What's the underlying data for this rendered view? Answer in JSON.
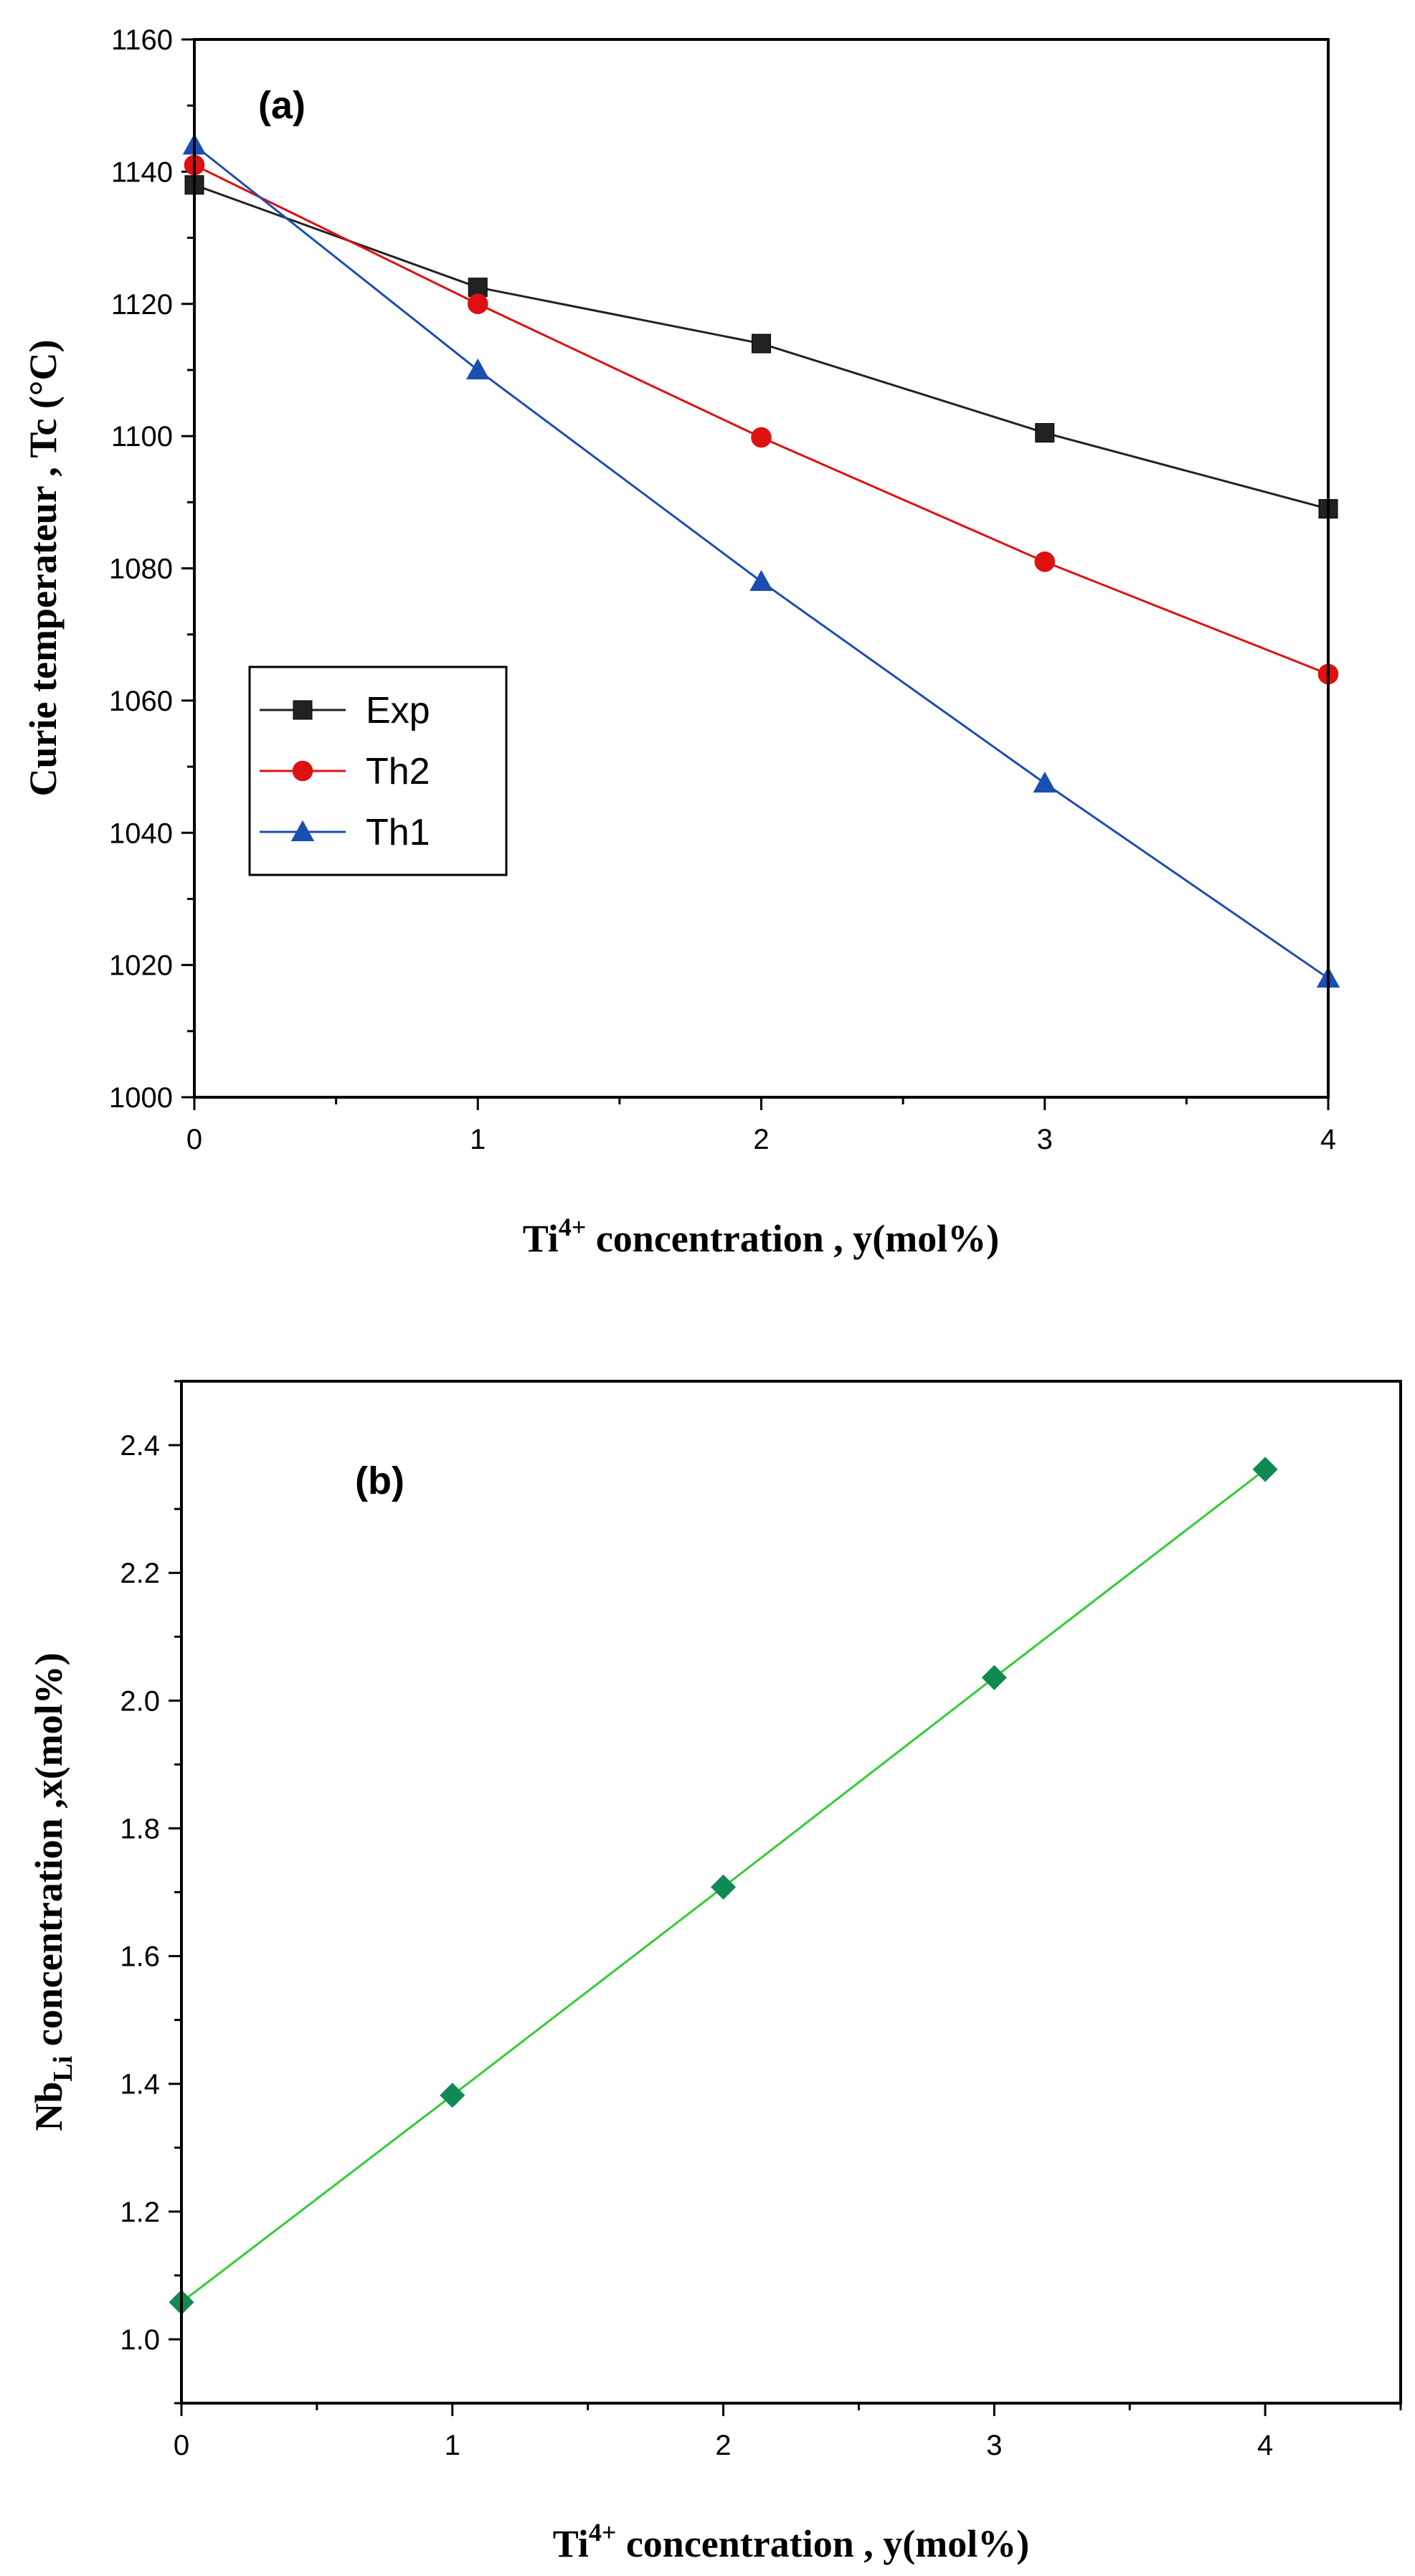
{
  "chart_data": [
    {
      "type": "line",
      "panel_label": "(a)",
      "x": [
        0,
        1,
        2,
        3,
        4
      ],
      "xlim": [
        0,
        4
      ],
      "ylim": [
        1000,
        1160
      ],
      "xticks": [
        "0",
        "1",
        "2",
        "3",
        "4"
      ],
      "yticks": [
        "1000",
        "1020",
        "1040",
        "1060",
        "1080",
        "1100",
        "1120",
        "1140",
        "1160"
      ],
      "xlabel": {
        "prefix": "Ti",
        "sup": "4+",
        "suffix": " concentration , y(mol%)"
      },
      "ylabel": "Curie temperateur , Tc (°C)",
      "legend_position": "left-middle",
      "series": [
        {
          "name": "Exp",
          "marker": "square",
          "color": "#222222",
          "values": [
            1138,
            1122.5,
            1114,
            1100.5,
            1089
          ]
        },
        {
          "name": "Th2",
          "marker": "circle",
          "color": "#dd1111",
          "values": [
            1141,
            1120,
            1099.8,
            1081,
            1064
          ]
        },
        {
          "name": "Th1",
          "marker": "triangle",
          "color": "#1a4fb0",
          "values": [
            1144,
            1110,
            1078,
            1047.5,
            1018
          ]
        }
      ]
    },
    {
      "type": "line",
      "panel_label": "(b)",
      "x": [
        0,
        1,
        2,
        3,
        4
      ],
      "xlim": [
        0,
        4.5
      ],
      "ylim": [
        0.9,
        2.5
      ],
      "xticks": [
        "0",
        "1",
        "2",
        "3",
        "4"
      ],
      "yticks": [
        "1.0",
        "1.2",
        "1.4",
        "1.6",
        "1.8",
        "2.0",
        "2.2",
        "2.4"
      ],
      "xlabel": {
        "prefix": "Ti",
        "sup": "4+",
        "suffix": " concentration , y(mol%)"
      },
      "ylabel": {
        "prefix": "Nb",
        "sub": "Li",
        "suffix": " concentration ,x(mol%)"
      },
      "series": [
        {
          "marker": "diamond",
          "color": "#0f8a55",
          "line_color": "#33cc33",
          "values": [
            1.058,
            1.382,
            1.708,
            2.036,
            2.362
          ]
        }
      ]
    }
  ]
}
